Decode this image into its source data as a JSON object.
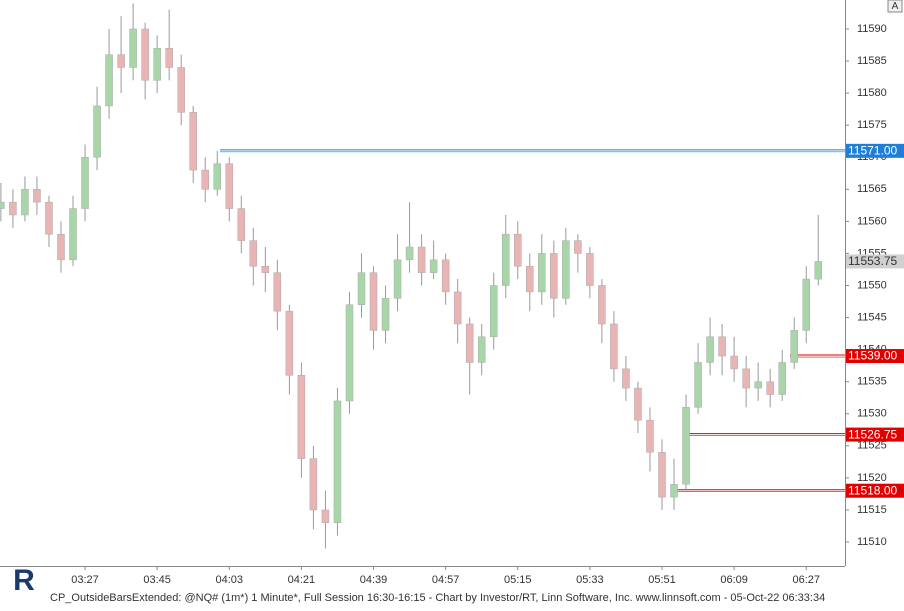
{
  "chart_data": {
    "type": "candlestick",
    "logo": "R",
    "button": "A",
    "footer": "CP_OutsideBarsExtended: @NQ# (1m*) 1 Minute*, Full Session 16:30-16:15 - Chart by Investor/RT, Linn Software, Inc. www.linnsoft.com - 05-Oct-22 06:33:34",
    "categories": [
      null,
      null,
      null,
      null,
      null,
      null,
      null,
      "03:27",
      null,
      null,
      null,
      null,
      null,
      "03:45",
      null,
      null,
      null,
      null,
      null,
      "04:03",
      null,
      null,
      null,
      null,
      null,
      "04:21",
      null,
      null,
      null,
      null,
      null,
      "04:39",
      null,
      null,
      null,
      null,
      null,
      "04:57",
      null,
      null,
      null,
      null,
      null,
      "05:15",
      null,
      null,
      null,
      null,
      null,
      "05:33",
      null,
      null,
      null,
      null,
      null,
      "05:51",
      null,
      null,
      null,
      null,
      null,
      "06:09",
      null,
      null,
      null,
      null,
      null,
      "06:27",
      null
    ],
    "candles": [
      [
        11562,
        11566,
        11560,
        11563
      ],
      [
        11563,
        11565,
        11559,
        11561
      ],
      [
        11561,
        11567,
        11560,
        11565
      ],
      [
        11565,
        11567,
        11561,
        11563
      ],
      [
        11563,
        11564,
        11556,
        11558
      ],
      [
        11558,
        11560,
        11552,
        11554
      ],
      [
        11554,
        11564,
        11553,
        11562
      ],
      [
        11562,
        11572,
        11560,
        11570
      ],
      [
        11570,
        11581,
        11568,
        11578
      ],
      [
        11578,
        11590,
        11576,
        11586
      ],
      [
        11586,
        11592,
        11580,
        11584
      ],
      [
        11584,
        11594,
        11582,
        11590
      ],
      [
        11590,
        11591,
        11579,
        11582
      ],
      [
        11582,
        11589,
        11580,
        11587
      ],
      [
        11587,
        11593,
        11582,
        11584
      ],
      [
        11584,
        11586,
        11575,
        11577
      ],
      [
        11577,
        11578,
        11566,
        11568
      ],
      [
        11568,
        11570,
        11563,
        11565
      ],
      [
        11565,
        11571,
        11564,
        11569
      ],
      [
        11569,
        11570,
        11560,
        11562
      ],
      [
        11562,
        11564,
        11555,
        11557
      ],
      [
        11557,
        11559,
        11550,
        11553
      ],
      [
        11553,
        11556,
        11549,
        11552
      ],
      [
        11552,
        11554,
        11543,
        11546
      ],
      [
        11546,
        11547,
        11533,
        11536
      ],
      [
        11536,
        11538,
        11520,
        11523
      ],
      [
        11523,
        11525,
        11512,
        11515
      ],
      [
        11515,
        11518,
        11509,
        11513
      ],
      [
        11513,
        11534,
        11511,
        11532
      ],
      [
        11532,
        11549,
        11530,
        11547
      ],
      [
        11547,
        11555,
        11545,
        11552
      ],
      [
        11552,
        11553,
        11540,
        11543
      ],
      [
        11543,
        11550,
        11541,
        11548
      ],
      [
        11548,
        11558,
        11546,
        11554
      ],
      [
        11554,
        11563,
        11552,
        11556
      ],
      [
        11556,
        11558,
        11550,
        11552
      ],
      [
        11552,
        11557,
        11551,
        11554
      ],
      [
        11554,
        11555,
        11547,
        11549
      ],
      [
        11549,
        11551,
        11541,
        11544
      ],
      [
        11544,
        11545,
        11533,
        11538
      ],
      [
        11538,
        11544,
        11536,
        11542
      ],
      [
        11542,
        11552,
        11540,
        11550
      ],
      [
        11550,
        11561,
        11548,
        11558
      ],
      [
        11558,
        11560,
        11551,
        11553
      ],
      [
        11553,
        11555,
        11546,
        11549
      ],
      [
        11549,
        11558,
        11547,
        11555
      ],
      [
        11555,
        11557,
        11545,
        11548
      ],
      [
        11548,
        11559,
        11547,
        11557
      ],
      [
        11557,
        11558,
        11552,
        11555
      ],
      [
        11555,
        11556,
        11548,
        11550
      ],
      [
        11550,
        11551,
        11541,
        11544
      ],
      [
        11544,
        11546,
        11535,
        11537
      ],
      [
        11537,
        11539,
        11532,
        11534
      ],
      [
        11534,
        11535,
        11527,
        11529
      ],
      [
        11529,
        11531,
        11521,
        11524
      ],
      [
        11524,
        11526,
        11515,
        11517
      ],
      [
        11517,
        11523,
        11515,
        11519
      ],
      [
        11519,
        11533,
        11518,
        11531
      ],
      [
        11531,
        11541,
        11530,
        11538
      ],
      [
        11538,
        11545,
        11536,
        11542
      ],
      [
        11542,
        11544,
        11536,
        11539
      ],
      [
        11539,
        11542,
        11535,
        11537
      ],
      [
        11537,
        11539,
        11531,
        11534
      ],
      [
        11534,
        11538,
        11532,
        11535
      ],
      [
        11535,
        11537,
        11531,
        11533
      ],
      [
        11533,
        11540,
        11532,
        11538
      ],
      [
        11538,
        11545,
        11537,
        11543
      ],
      [
        11543,
        11553,
        11541,
        11551
      ],
      [
        11551,
        11561,
        11550,
        11553.75
      ]
    ],
    "up_color": "#a9d6a9",
    "down_color": "#e9b4b4",
    "levels": [
      {
        "value": 11571.0,
        "label": "11571.00",
        "color": "#1e7fd8"
      },
      {
        "value": 11539.0,
        "label": "11539.00",
        "color": "#e00000"
      },
      {
        "value": 11526.75,
        "label": "11526.75",
        "color": "#e00000"
      },
      {
        "value": 11518.0,
        "label": "11518.00",
        "color": "#e00000"
      },
      {
        "value": 11553.75,
        "label": "11553.75",
        "color": "#d0d0d0"
      }
    ],
    "ylim": [
      11506.26,
      11594.52
    ],
    "yticks": [
      11510,
      11515,
      11520,
      11525,
      11530,
      11535,
      11540,
      11545,
      11550,
      11555,
      11560,
      11565,
      11570,
      11575,
      11580,
      11585,
      11590
    ]
  }
}
